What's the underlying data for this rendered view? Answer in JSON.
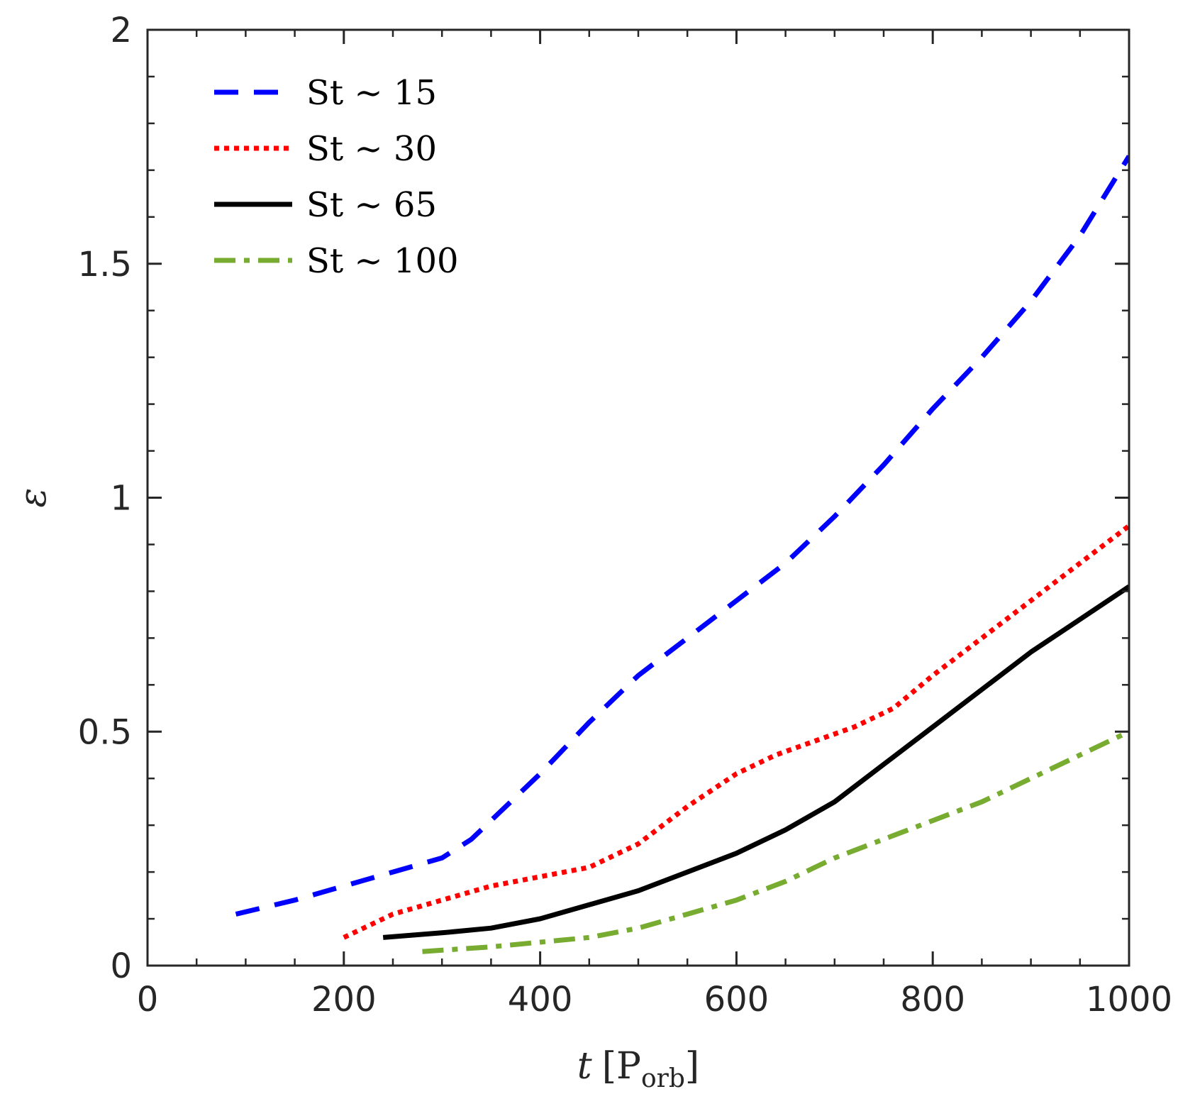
{
  "chart_data": {
    "type": "line",
    "xlabel": {
      "var": "t",
      "unit_main": "P",
      "unit_sub": "orb",
      "open": "[",
      "close": "]"
    },
    "ylabel": "ε",
    "xlim": [
      0,
      1000
    ],
    "ylim": [
      0,
      2
    ],
    "xticks": [
      0,
      200,
      400,
      600,
      800,
      1000
    ],
    "xtick_labels": [
      "0",
      "200",
      "400",
      "600",
      "800",
      "1000"
    ],
    "yticks": [
      0,
      0.5,
      1,
      1.5,
      2
    ],
    "ytick_labels": [
      "0",
      "0.5",
      "1",
      "1.5",
      "2"
    ],
    "grid": false,
    "legend_position": "top-left",
    "series": [
      {
        "name": "St ∼ 15",
        "color": "#0000ff",
        "style": "dashed",
        "x": [
          90,
          150,
          200,
          250,
          300,
          330,
          360,
          400,
          450,
          500,
          550,
          600,
          650,
          700,
          750,
          800,
          850,
          900,
          950,
          1000
        ],
        "y": [
          0.11,
          0.14,
          0.17,
          0.2,
          0.23,
          0.27,
          0.33,
          0.41,
          0.52,
          0.62,
          0.7,
          0.78,
          0.86,
          0.96,
          1.07,
          1.19,
          1.3,
          1.42,
          1.56,
          1.73
        ]
      },
      {
        "name": "St ∼ 30",
        "color": "#ff0000",
        "style": "dotted",
        "x": [
          200,
          250,
          300,
          350,
          400,
          450,
          500,
          550,
          600,
          640,
          680,
          720,
          760,
          800,
          850,
          900,
          950,
          1000
        ],
        "y": [
          0.06,
          0.11,
          0.14,
          0.17,
          0.19,
          0.21,
          0.26,
          0.34,
          0.41,
          0.45,
          0.48,
          0.51,
          0.55,
          0.62,
          0.7,
          0.78,
          0.86,
          0.94
        ]
      },
      {
        "name": "St ∼ 65",
        "color": "#000000",
        "style": "solid",
        "x": [
          240,
          300,
          350,
          400,
          450,
          500,
          550,
          600,
          650,
          700,
          750,
          800,
          850,
          900,
          950,
          1000
        ],
        "y": [
          0.06,
          0.07,
          0.08,
          0.1,
          0.13,
          0.16,
          0.2,
          0.24,
          0.29,
          0.35,
          0.43,
          0.51,
          0.59,
          0.67,
          0.74,
          0.81
        ]
      },
      {
        "name": "St ∼ 100",
        "color": "#77ac30",
        "style": "dashdot",
        "x": [
          280,
          350,
          400,
          450,
          500,
          550,
          600,
          650,
          700,
          750,
          800,
          850,
          900,
          950,
          1000
        ],
        "y": [
          0.03,
          0.04,
          0.05,
          0.06,
          0.08,
          0.11,
          0.14,
          0.18,
          0.23,
          0.27,
          0.31,
          0.35,
          0.4,
          0.45,
          0.5
        ]
      }
    ]
  }
}
